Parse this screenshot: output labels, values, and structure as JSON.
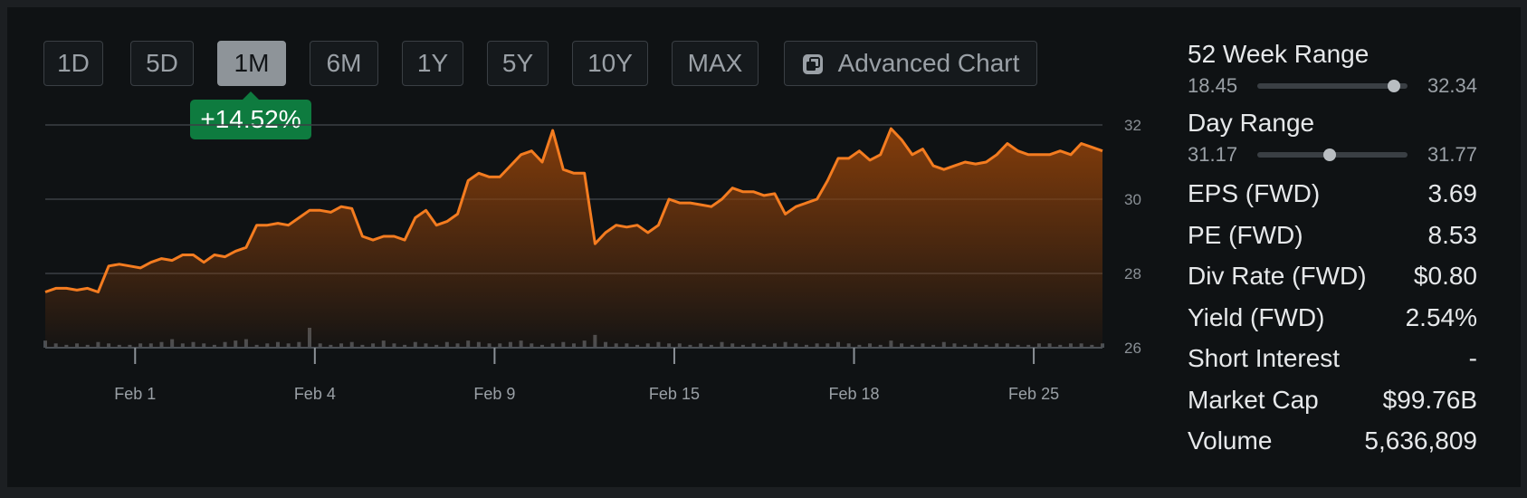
{
  "time_ranges": [
    "1D",
    "5D",
    "1M",
    "6M",
    "1Y",
    "5Y",
    "10Y",
    "MAX"
  ],
  "active_range": "1M",
  "advanced_chart_label": "Advanced Chart",
  "change_badge": "+14.52%",
  "colors": {
    "line": "#f47c20",
    "fill_top": "#8a3f0a",
    "grid": "#3b4045",
    "badge": "#0e7b3f",
    "volume": "#4a4f54"
  },
  "stats": {
    "week52": {
      "label": "52 Week Range",
      "low": "18.45",
      "high": "32.34",
      "position": 0.91
    },
    "day": {
      "label": "Day Range",
      "low": "31.17",
      "high": "31.77",
      "position": 0.48
    },
    "rows": [
      {
        "label": "EPS (FWD)",
        "value": "3.69"
      },
      {
        "label": "PE (FWD)",
        "value": "8.53"
      },
      {
        "label": "Div Rate (FWD)",
        "value": "$0.80"
      },
      {
        "label": "Yield (FWD)",
        "value": "2.54%"
      },
      {
        "label": "Short Interest",
        "value": "-"
      },
      {
        "label": "Market Cap",
        "value": "$99.76B"
      },
      {
        "label": "Volume",
        "value": "5,636,809"
      }
    ]
  },
  "chart_data": {
    "type": "area",
    "ylim": [
      26,
      32
    ],
    "y_ticks": [
      26,
      28,
      30,
      32
    ],
    "x_ticks": [
      {
        "label": "Feb 1",
        "x": 8.5
      },
      {
        "label": "Feb 4",
        "x": 25.5
      },
      {
        "label": "Feb 9",
        "x": 42.5
      },
      {
        "label": "Feb 15",
        "x": 59.5
      },
      {
        "label": "Feb 18",
        "x": 76.5
      },
      {
        "label": "Feb 25",
        "x": 93.5
      }
    ],
    "x": [
      0,
      1,
      2,
      3,
      4,
      5,
      6,
      7,
      8,
      9,
      10,
      11,
      12,
      13,
      14,
      15,
      16,
      17,
      18,
      19,
      20,
      21,
      22,
      23,
      24,
      25,
      26,
      27,
      28,
      29,
      30,
      31,
      32,
      33,
      34,
      35,
      36,
      37,
      38,
      39,
      40,
      41,
      42,
      43,
      44,
      45,
      46,
      47,
      48,
      49,
      50,
      51,
      52,
      53,
      54,
      55,
      56,
      57,
      58,
      59,
      60,
      61,
      62,
      63,
      64,
      65,
      66,
      67,
      68,
      69,
      70,
      71,
      72,
      73,
      74,
      75,
      76,
      77,
      78,
      79,
      80,
      81,
      82,
      83,
      84,
      85,
      86,
      87,
      88,
      89,
      90,
      91,
      92,
      93,
      94,
      95,
      96,
      97,
      98,
      99,
      100
    ],
    "values": [
      27.5,
      27.6,
      27.6,
      27.55,
      27.6,
      27.5,
      28.2,
      28.25,
      28.2,
      28.15,
      28.3,
      28.4,
      28.35,
      28.5,
      28.5,
      28.3,
      28.5,
      28.45,
      28.6,
      28.7,
      29.3,
      29.3,
      29.35,
      29.3,
      29.5,
      29.7,
      29.7,
      29.65,
      29.8,
      29.75,
      29.0,
      28.9,
      29.0,
      29.0,
      28.9,
      29.5,
      29.7,
      29.3,
      29.4,
      29.6,
      30.5,
      30.7,
      30.6,
      30.6,
      30.9,
      31.2,
      31.3,
      31.0,
      31.85,
      30.8,
      30.7,
      30.7,
      28.8,
      29.1,
      29.3,
      29.25,
      29.3,
      29.1,
      29.3,
      30.0,
      29.9,
      29.9,
      29.85,
      29.8,
      30.0,
      30.3,
      30.2,
      30.2,
      30.1,
      30.15,
      29.6,
      29.8,
      29.9,
      30.0,
      30.5,
      31.1,
      31.1,
      31.3,
      31.05,
      31.2,
      31.9,
      31.6,
      31.2,
      31.35,
      30.9,
      30.8,
      30.9,
      31.0,
      30.95,
      31.0,
      31.2,
      31.5,
      31.3,
      31.2,
      31.2,
      31.2,
      31.3,
      31.2,
      31.5,
      31.4,
      31.3
    ],
    "volume": [
      5,
      3,
      2,
      3,
      2,
      4,
      3,
      2,
      2,
      3,
      3,
      4,
      6,
      3,
      4,
      3,
      2,
      4,
      5,
      6,
      2,
      3,
      4,
      3,
      4,
      14,
      3,
      2,
      3,
      4,
      2,
      3,
      5,
      3,
      2,
      4,
      3,
      2,
      4,
      3,
      5,
      4,
      3,
      3,
      4,
      5,
      3,
      2,
      3,
      4,
      3,
      5,
      9,
      4,
      3,
      3,
      2,
      3,
      4,
      3,
      3,
      2,
      3,
      2,
      4,
      3,
      2,
      3,
      2,
      3,
      4,
      3,
      2,
      3,
      3,
      4,
      3,
      2,
      3,
      2,
      5,
      3,
      2,
      3,
      2,
      4,
      3,
      2,
      3,
      2,
      3,
      3,
      2,
      2,
      3,
      3,
      2,
      3,
      3,
      2,
      3
    ]
  }
}
